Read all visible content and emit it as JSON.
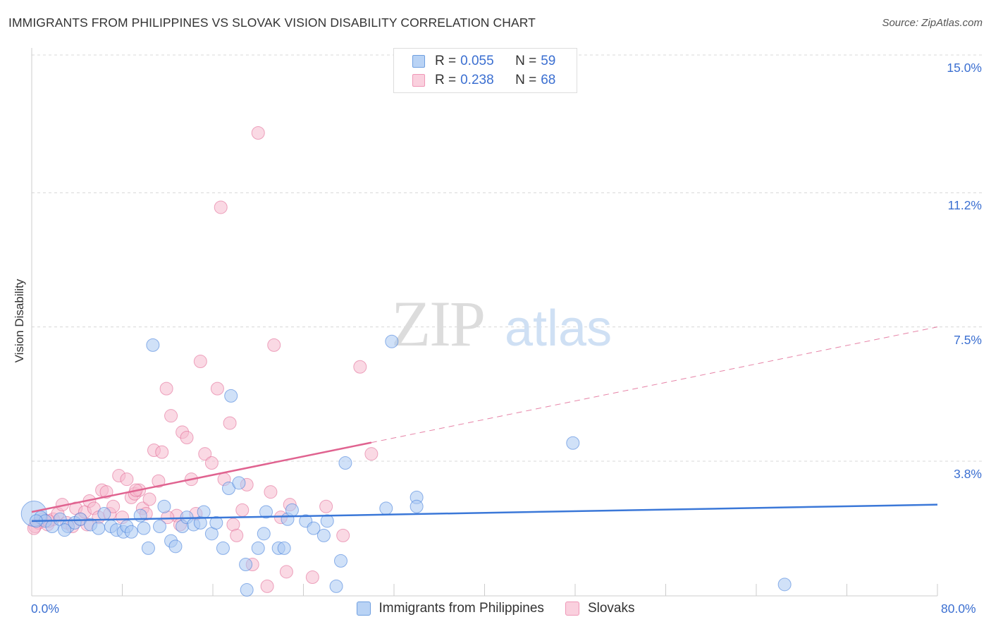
{
  "title": "IMMIGRANTS FROM PHILIPPINES VS SLOVAK VISION DISABILITY CORRELATION CHART",
  "source": "Source: ZipAtlas.com",
  "watermark": {
    "zip": "ZIP",
    "atlas": "atlas"
  },
  "colors": {
    "blue_fill": "#a9c8f2",
    "blue_line": "#3b78d8",
    "pink_fill": "#f6b9cd",
    "pink_line": "#e06390",
    "tick": "#3b6fd1"
  },
  "legend": {
    "rows": [
      {
        "r_label": "R =",
        "r_value": "0.055",
        "n_label": "N =",
        "n_value": "59"
      },
      {
        "r_label": "R =",
        "r_value": "0.238",
        "n_label": "N =",
        "n_value": "68"
      }
    ]
  },
  "chart_data": {
    "type": "scatter",
    "title": "IMMIGRANTS FROM PHILIPPINES VS SLOVAK VISION DISABILITY CORRELATION CHART",
    "xlabel": "",
    "ylabel": "Vision Disability",
    "xlim": [
      0,
      80
    ],
    "ylim": [
      0,
      15.4
    ],
    "x_tick_labels": [
      "0.0%",
      "80.0%"
    ],
    "y_ticks": [
      {
        "value": 3.8,
        "label": "3.8%"
      },
      {
        "value": 7.5,
        "label": "7.5%"
      },
      {
        "value": 11.2,
        "label": "11.2%"
      },
      {
        "value": 15.0,
        "label": "15.0%"
      }
    ],
    "series": [
      {
        "name": "Immigrants from Philippines",
        "color": "blue",
        "r": 0.055,
        "n": 59,
        "trend": {
          "x": [
            0,
            80
          ],
          "y": [
            2.15,
            2.6
          ],
          "dashed_from": null
        },
        "points": [
          [
            0.2,
            2.35
          ],
          [
            0.8,
            2.25
          ],
          [
            1.2,
            2.15
          ],
          [
            1.8,
            2.0
          ],
          [
            2.5,
            2.2
          ],
          [
            3.2,
            2.0
          ],
          [
            3.8,
            2.1
          ],
          [
            4.3,
            2.2
          ],
          [
            5.2,
            2.05
          ],
          [
            5.9,
            1.95
          ],
          [
            6.4,
            2.35
          ],
          [
            7.0,
            2.0
          ],
          [
            7.5,
            1.9
          ],
          [
            8.1,
            1.85
          ],
          [
            8.4,
            2.0
          ],
          [
            8.8,
            1.85
          ],
          [
            9.6,
            2.3
          ],
          [
            9.9,
            1.95
          ],
          [
            10.3,
            1.4
          ],
          [
            10.7,
            7.0
          ],
          [
            11.3,
            2.0
          ],
          [
            11.7,
            2.55
          ],
          [
            12.3,
            1.6
          ],
          [
            12.7,
            1.45
          ],
          [
            13.3,
            2.0
          ],
          [
            13.7,
            2.25
          ],
          [
            14.3,
            2.05
          ],
          [
            14.9,
            2.1
          ],
          [
            15.2,
            2.4
          ],
          [
            15.9,
            1.8
          ],
          [
            16.3,
            2.1
          ],
          [
            16.9,
            1.4
          ],
          [
            17.4,
            3.05
          ],
          [
            17.6,
            5.6
          ],
          [
            18.3,
            3.2
          ],
          [
            18.9,
            0.95
          ],
          [
            19.0,
            0.25
          ],
          [
            20.0,
            1.4
          ],
          [
            20.5,
            1.8
          ],
          [
            20.7,
            2.4
          ],
          [
            21.8,
            1.4
          ],
          [
            22.3,
            1.4
          ],
          [
            22.6,
            2.2
          ],
          [
            23.0,
            2.45
          ],
          [
            24.2,
            2.15
          ],
          [
            24.9,
            1.95
          ],
          [
            25.8,
            1.75
          ],
          [
            26.1,
            2.15
          ],
          [
            26.9,
            0.35
          ],
          [
            27.3,
            1.05
          ],
          [
            27.7,
            3.75
          ],
          [
            31.3,
            2.5
          ],
          [
            31.8,
            7.1
          ],
          [
            34.0,
            2.8
          ],
          [
            34.0,
            2.55
          ],
          [
            47.8,
            4.3
          ],
          [
            66.5,
            0.4
          ],
          [
            0.4,
            2.15
          ],
          [
            2.9,
            1.9
          ]
        ]
      },
      {
        "name": "Slovaks",
        "color": "pink",
        "r": 0.238,
        "n": 68,
        "trend": {
          "x": [
            0,
            80
          ],
          "y": [
            2.4,
            7.5
          ],
          "dashed_from": 30
        },
        "points": [
          [
            0.3,
            2.0
          ],
          [
            0.6,
            2.1
          ],
          [
            1.0,
            2.2
          ],
          [
            1.4,
            2.05
          ],
          [
            1.9,
            2.2
          ],
          [
            2.3,
            2.35
          ],
          [
            2.7,
            2.6
          ],
          [
            3.1,
            2.1
          ],
          [
            3.6,
            2.0
          ],
          [
            3.9,
            2.5
          ],
          [
            4.3,
            2.2
          ],
          [
            4.7,
            2.4
          ],
          [
            5.1,
            2.7
          ],
          [
            5.5,
            2.5
          ],
          [
            5.9,
            2.25
          ],
          [
            6.2,
            3.0
          ],
          [
            6.6,
            2.95
          ],
          [
            6.9,
            2.35
          ],
          [
            7.2,
            2.55
          ],
          [
            7.7,
            3.4
          ],
          [
            8.0,
            2.25
          ],
          [
            8.4,
            3.3
          ],
          [
            8.8,
            2.8
          ],
          [
            9.1,
            2.9
          ],
          [
            9.5,
            3.0
          ],
          [
            9.8,
            2.5
          ],
          [
            10.1,
            2.35
          ],
          [
            10.4,
            2.75
          ],
          [
            10.8,
            4.1
          ],
          [
            11.2,
            3.25
          ],
          [
            11.5,
            4.05
          ],
          [
            11.9,
            5.8
          ],
          [
            12.3,
            5.05
          ],
          [
            12.8,
            2.3
          ],
          [
            13.1,
            2.05
          ],
          [
            13.3,
            4.6
          ],
          [
            13.7,
            4.45
          ],
          [
            14.1,
            3.3
          ],
          [
            14.5,
            2.35
          ],
          [
            14.9,
            6.55
          ],
          [
            15.3,
            4.0
          ],
          [
            15.9,
            3.75
          ],
          [
            16.4,
            5.8
          ],
          [
            16.7,
            10.8
          ],
          [
            17.0,
            3.3
          ],
          [
            17.5,
            4.85
          ],
          [
            17.8,
            2.05
          ],
          [
            18.1,
            1.75
          ],
          [
            18.6,
            2.45
          ],
          [
            19.0,
            3.15
          ],
          [
            19.5,
            0.95
          ],
          [
            20.0,
            12.85
          ],
          [
            20.8,
            0.35
          ],
          [
            21.1,
            2.95
          ],
          [
            21.4,
            7.0
          ],
          [
            22.0,
            2.25
          ],
          [
            22.5,
            0.75
          ],
          [
            22.8,
            2.6
          ],
          [
            24.8,
            0.6
          ],
          [
            26.0,
            2.55
          ],
          [
            27.5,
            1.75
          ],
          [
            29.0,
            6.4
          ],
          [
            30.0,
            4.0
          ],
          [
            0.2,
            1.95
          ],
          [
            1.5,
            2.15
          ],
          [
            4.9,
            2.05
          ],
          [
            9.2,
            3.0
          ],
          [
            12.0,
            2.25
          ]
        ]
      }
    ]
  },
  "bottom_legend": [
    {
      "label": "Immigrants from Philippines",
      "color": "blue"
    },
    {
      "label": "Slovaks",
      "color": "pink"
    }
  ]
}
